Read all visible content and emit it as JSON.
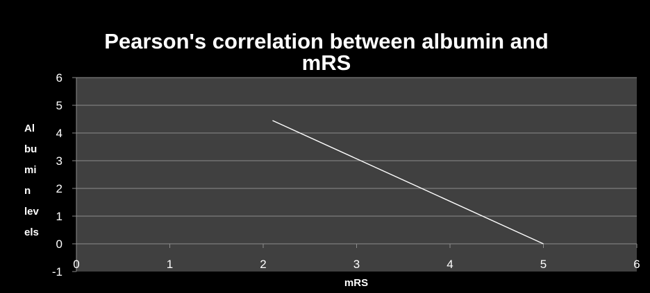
{
  "chart_data": {
    "type": "line",
    "title_lines": [
      "Pearson's correlation between albumin and",
      "mRS"
    ],
    "xlabel": "mRS",
    "ylabel_lines": [
      "Al",
      "bu",
      "mi",
      "n",
      "lev",
      "els"
    ],
    "xlim": [
      0,
      6
    ],
    "ylim": [
      -1,
      6
    ],
    "x_ticks": [
      0,
      1,
      2,
      3,
      4,
      5,
      6
    ],
    "y_ticks": [
      6,
      5,
      4,
      3,
      2,
      1,
      0,
      -1
    ],
    "grid": "horizontal",
    "legend": "none",
    "series": [
      {
        "x": [
          2.1,
          5.0
        ],
        "y": [
          4.45,
          0.0
        ]
      }
    ]
  },
  "colors": {
    "page_background": "#000000",
    "plot_background": "#404040",
    "gridline": "#8c8c8c",
    "text": "#ffffff",
    "line": "#ffffff"
  }
}
